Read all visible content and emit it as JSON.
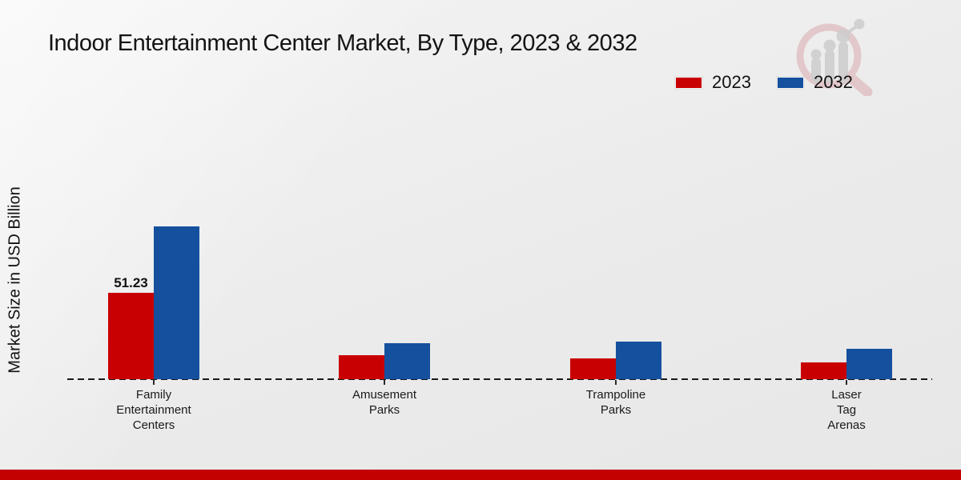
{
  "header": {
    "title": "Indoor Entertainment Center Market, By Type, 2023 & 2032"
  },
  "legend": {
    "items": [
      {
        "label": "2023",
        "color": "#c90001"
      },
      {
        "label": "2032",
        "color": "#15509e"
      }
    ]
  },
  "axes": {
    "y_label": "Market Size in USD Billion"
  },
  "chart_data": {
    "type": "bar",
    "title": "Indoor Entertainment Center Market, By Type, 2023 & 2032",
    "xlabel": "",
    "ylabel": "Market Size in USD Billion",
    "categories": [
      "Family Entertainment Centers",
      "Amusement Parks",
      "Trampoline Parks",
      "Laser Tag Arenas"
    ],
    "category_label_lines": [
      [
        "Family",
        "Entertainment",
        "Centers"
      ],
      [
        "Amusement",
        "Parks"
      ],
      [
        "Trampoline",
        "Parks"
      ],
      [
        "Laser",
        "Tag",
        "Arenas"
      ]
    ],
    "series": [
      {
        "name": "2023",
        "color": "#c90001",
        "values": [
          51.23,
          14.2,
          12.3,
          10.0
        ]
      },
      {
        "name": "2032",
        "color": "#15509e",
        "values": [
          90.6,
          21.3,
          22.3,
          18.0
        ]
      }
    ],
    "data_labels": [
      {
        "series": "2023",
        "category": "Family Entertainment Centers",
        "text": "51.23"
      }
    ],
    "ylim": [
      0,
      95
    ],
    "grid": false,
    "legend_position": "top-right",
    "baseline_style": "dashed"
  },
  "branding": {
    "logo_icon": "magnifier-bar-chart-logo",
    "footer_bar_color": "#c30101"
  }
}
